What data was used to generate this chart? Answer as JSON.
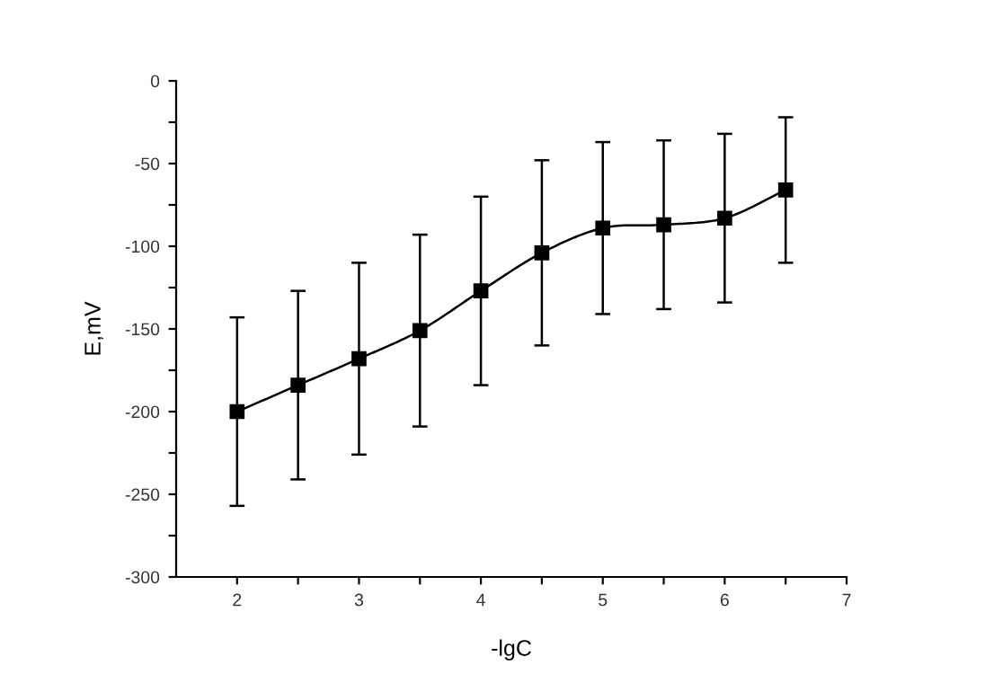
{
  "chart_data": {
    "type": "line",
    "xlabel": "-lgC",
    "ylabel": "E,mV",
    "x": [
      2,
      2.5,
      3,
      3.5,
      4,
      4.5,
      5,
      5.5,
      6,
      6.5
    ],
    "series": [
      {
        "color": "#000000",
        "values": [
          -200,
          -184,
          -168,
          -151,
          -127,
          -104,
          -89,
          -87,
          -83,
          -66
        ],
        "errors": [
          57,
          57,
          58,
          58,
          57,
          56,
          52,
          51,
          51,
          44
        ]
      }
    ],
    "marker": "square",
    "line_style": "solid",
    "grid": false,
    "xlim": [
      1.5,
      7
    ],
    "xticks": [
      2,
      {
        "value": 2.5,
        "label": null
      },
      3,
      {
        "value": 3.5,
        "label": null
      },
      4,
      {
        "value": 4.5,
        "label": null
      },
      5,
      {
        "value": 5.5,
        "label": null
      },
      6,
      {
        "value": 6.5,
        "label": null
      },
      7
    ],
    "ylim": [
      -300,
      0
    ],
    "yticks": [
      -300,
      {
        "value": -275,
        "label": null
      },
      -250,
      {
        "value": -225,
        "label": null
      },
      -200,
      {
        "value": -175,
        "label": null
      },
      -150,
      {
        "value": -125,
        "label": null
      },
      -100,
      {
        "value": -75,
        "label": null
      },
      -50,
      {
        "value": -25,
        "label": null
      },
      0
    ]
  }
}
